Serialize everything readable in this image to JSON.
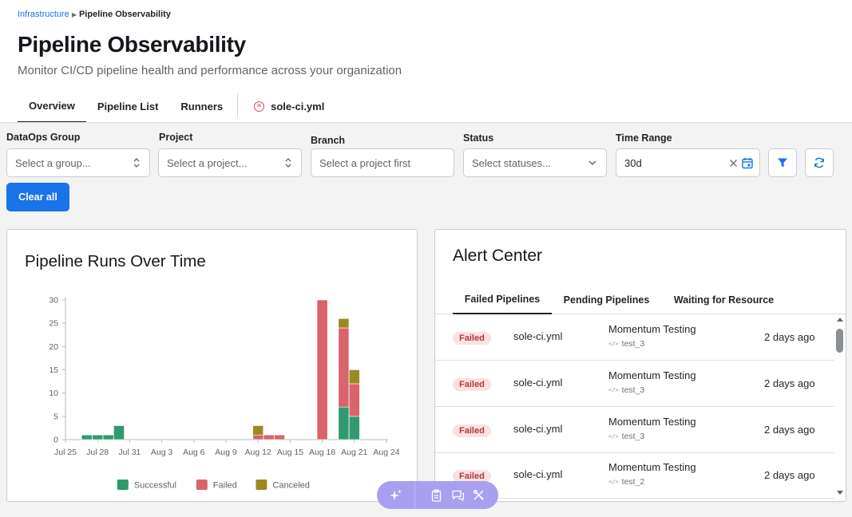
{
  "breadcrumb": {
    "parent": "Infrastructure",
    "current": "Pipeline Observability"
  },
  "page": {
    "title": "Pipeline Observability",
    "subtitle": "Monitor CI/CD pipeline health and performance across your organization"
  },
  "tabs": {
    "overview": "Overview",
    "pipeline_list": "Pipeline List",
    "runners": "Runners",
    "file": "sole-ci.yml"
  },
  "filters": {
    "group_label": "DataOps Group",
    "group_placeholder": "Select a group...",
    "project_label": "Project",
    "project_placeholder": "Select a project...",
    "branch_label": "Branch",
    "branch_placeholder": "Select a project first",
    "status_label": "Status",
    "status_placeholder": "Select statuses...",
    "time_label": "Time Range",
    "time_value": "30d",
    "clear_label": "Clear all"
  },
  "chart_card": {
    "title": "Pipeline Runs Over Time"
  },
  "chart_data": {
    "type": "bar",
    "stacked": true,
    "title": "Pipeline Runs Over Time",
    "xlabel": "",
    "ylabel": "",
    "ylim": [
      0,
      30
    ],
    "yticks": [
      0,
      5,
      10,
      15,
      20,
      25,
      30
    ],
    "x_tick_labels": [
      "Jul 25",
      "Jul 28",
      "Jul 31",
      "Aug 3",
      "Aug 6",
      "Aug 9",
      "Aug 12",
      "Aug 15",
      "Aug 18",
      "Aug 21",
      "Aug 24"
    ],
    "categories": [
      "Jul 27",
      "Jul 28",
      "Jul 29",
      "Jul 30",
      "Aug 12",
      "Aug 13",
      "Aug 14",
      "Aug 18",
      "Aug 20",
      "Aug 21"
    ],
    "series": [
      {
        "name": "Successful",
        "color": "#2e9a6e",
        "values": [
          1,
          1,
          1,
          3,
          0,
          0,
          0,
          0,
          7,
          5
        ]
      },
      {
        "name": "Failed",
        "color": "#d9646b",
        "values": [
          0,
          0,
          0,
          0,
          1,
          1,
          1,
          30,
          17,
          7
        ]
      },
      {
        "name": "Canceled",
        "color": "#9a8a22",
        "values": [
          0,
          0,
          0,
          0,
          2,
          0,
          0,
          0,
          2,
          3
        ]
      }
    ],
    "legend_position": "bottom",
    "grid": false
  },
  "alert_center": {
    "title": "Alert Center",
    "tabs": [
      "Failed Pipelines",
      "Pending Pipelines",
      "Waiting for Resource"
    ],
    "rows": [
      {
        "status": "Failed",
        "file": "sole-ci.yml",
        "name": "Momentum Testing",
        "job": "test_3",
        "time": "2 days ago"
      },
      {
        "status": "Failed",
        "file": "sole-ci.yml",
        "name": "Momentum Testing",
        "job": "test_3",
        "time": "2 days ago"
      },
      {
        "status": "Failed",
        "file": "sole-ci.yml",
        "name": "Momentum Testing",
        "job": "test_3",
        "time": "2 days ago"
      },
      {
        "status": "Failed",
        "file": "sole-ci.yml",
        "name": "Momentum Testing",
        "job": "test_2",
        "time": "2 days ago"
      }
    ]
  },
  "colors": {
    "accent": "#1a73e8",
    "failed_badge_bg": "#fbe1e1",
    "failed_badge_text": "#b0393f",
    "toolbar": "#a99ff1"
  },
  "icons": {
    "file_tab": "circle-x-icon",
    "time_clear": "close-icon",
    "time_calendar": "calendar-icon",
    "filter_button": "filter-icon",
    "refresh_button": "refresh-icon",
    "job": "code-icon",
    "toolbar": [
      "sparkle-icon",
      "clipboard-icon",
      "chat-icon",
      "tools-icon"
    ]
  }
}
